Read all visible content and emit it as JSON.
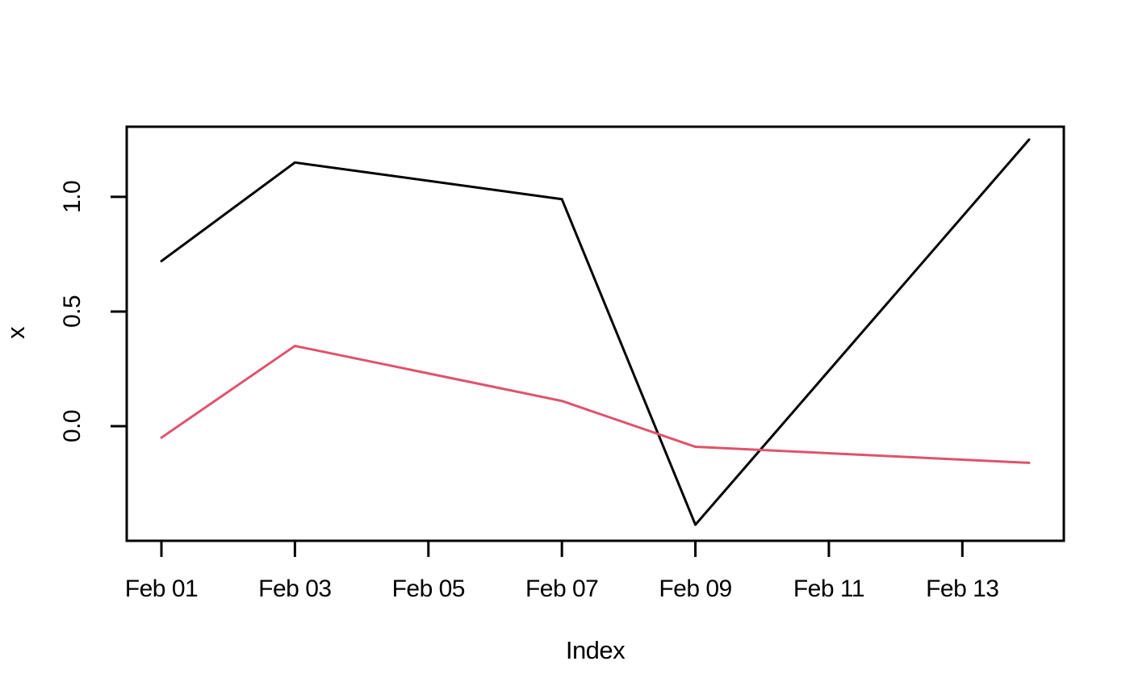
{
  "chart_data": {
    "type": "line",
    "title": "",
    "xlabel": "Index",
    "ylabel": "x",
    "grid": false,
    "legend": "none",
    "background": "#FFFFFF",
    "axis_color": "#000000",
    "x_axis": {
      "tick_labels": [
        "Feb 01",
        "Feb 03",
        "Feb 05",
        "Feb 07",
        "Feb 09",
        "Feb 11",
        "Feb 13"
      ],
      "tick_positions_days": [
        1,
        3,
        5,
        7,
        9,
        11,
        13
      ],
      "range_days": [
        0.48,
        14.52
      ]
    },
    "y_axis": {
      "tick_labels": [
        "0.0",
        "0.5",
        "1.0"
      ],
      "tick_values": [
        0.0,
        0.5,
        1.0
      ],
      "range": [
        -0.5,
        1.306
      ]
    },
    "series": [
      {
        "name": "black-series",
        "color": "#000000",
        "x_days": [
          1,
          3,
          7,
          9,
          14
        ],
        "values": [
          0.72,
          1.15,
          0.99,
          -0.43,
          1.25
        ]
      },
      {
        "name": "red-series",
        "color": "#DF536B",
        "x_days": [
          1,
          3,
          7,
          9,
          14
        ],
        "values": [
          -0.05,
          0.35,
          0.11,
          -0.09,
          -0.16
        ]
      }
    ]
  }
}
